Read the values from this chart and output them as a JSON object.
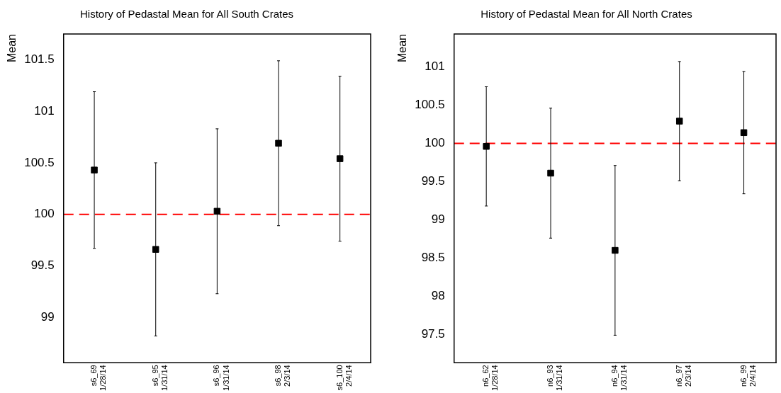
{
  "chart_data": [
    {
      "type": "scatter",
      "title": "History of Pedastal Mean for All South Crates",
      "ylabel": "Mean",
      "categories": [
        "s6_69\n1/28/14",
        "s6_95\n1/31/14",
        "s6_96\n1/31/14",
        "s6_98\n2/3/14",
        "s6_100\n2/4/14"
      ],
      "series": [
        {
          "color": "#000000",
          "values": [
            100.43,
            99.66,
            100.03,
            100.69,
            100.54
          ],
          "errors": [
            0.76,
            0.84,
            0.8,
            0.8,
            0.8
          ]
        }
      ],
      "ylim": [
        98.56,
        101.75
      ],
      "yticks": [
        99,
        99.5,
        100,
        100.5,
        101,
        101.5
      ],
      "marker": "square",
      "grid": false,
      "legend": false,
      "ref_lines": [
        {
          "axis": "y",
          "value": 100,
          "color": "#ff0000",
          "line_style": "dashed"
        }
      ]
    },
    {
      "type": "scatter",
      "title": "History of Pedastal Mean for All North Crates",
      "ylabel": "Mean",
      "categories": [
        "n6_62\n1/28/14",
        "n6_93\n1/31/14",
        "n6_94\n1/31/14",
        "n6_97\n2/3/14",
        "n6_99\n2/4/14"
      ],
      "series": [
        {
          "color": "#000000",
          "values": [
            99.96,
            99.61,
            98.6,
            100.29,
            100.14
          ],
          "errors": [
            0.78,
            0.85,
            1.11,
            0.78,
            0.8
          ]
        }
      ],
      "ylim": [
        97.13,
        101.43
      ],
      "yticks": [
        97.5,
        98,
        98.5,
        99,
        99.5,
        100,
        100.5,
        101
      ],
      "marker": "square",
      "grid": false,
      "legend": false,
      "ref_lines": [
        {
          "axis": "y",
          "value": 100,
          "color": "#ff0000",
          "line_style": "dashed"
        }
      ]
    }
  ]
}
